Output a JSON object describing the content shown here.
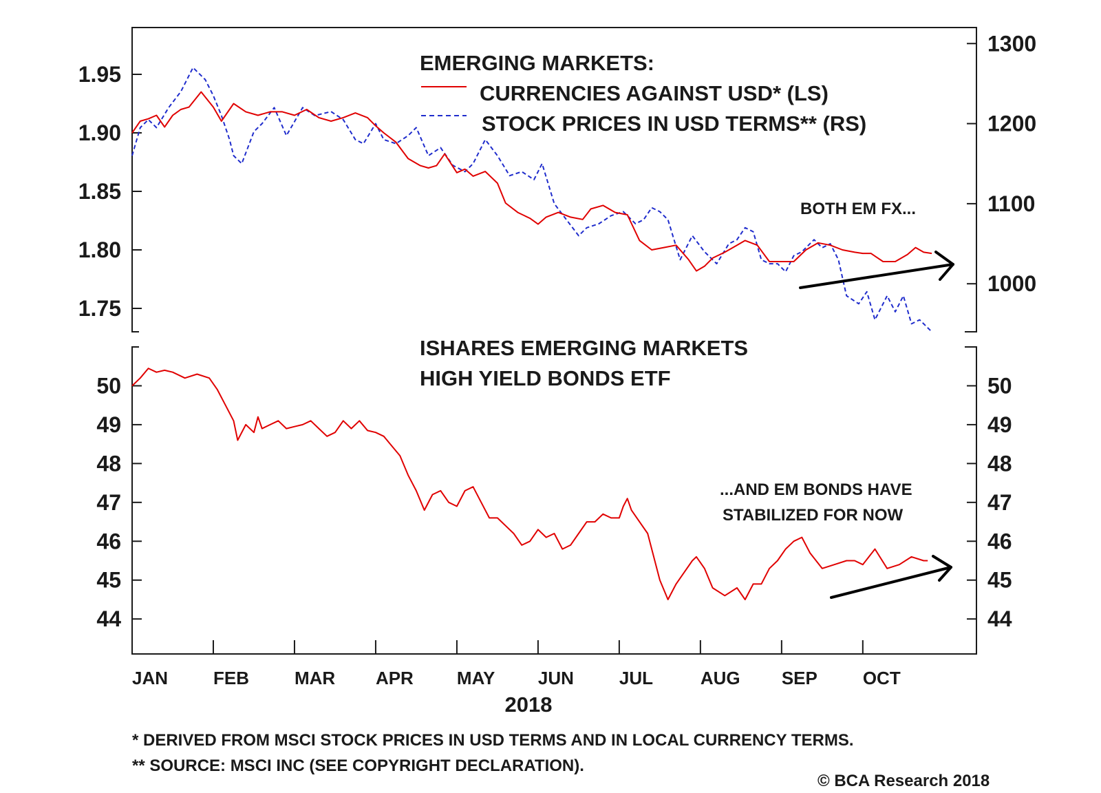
{
  "chart_data": [
    {
      "type": "line",
      "title": "EMERGING MARKETS:",
      "series": [
        {
          "name": "CURRENCIES AGAINST USD* (LS)",
          "axis": "left",
          "color": "#e00000",
          "style": "solid",
          "x": [
            0,
            0.1,
            0.2,
            0.3,
            0.4,
            0.5,
            0.6,
            0.7,
            0.85,
            1.0,
            1.1,
            1.25,
            1.4,
            1.55,
            1.7,
            1.85,
            2.0,
            2.15,
            2.3,
            2.45,
            2.6,
            2.75,
            2.9,
            3.0,
            3.1,
            3.25,
            3.4,
            3.55,
            3.65,
            3.75,
            3.85,
            4.0,
            4.1,
            4.2,
            4.35,
            4.5,
            4.6,
            4.75,
            4.9,
            5.0,
            5.1,
            5.25,
            5.4,
            5.55,
            5.65,
            5.8,
            5.95,
            6.1,
            6.25,
            6.4,
            6.55,
            6.7,
            6.85,
            6.95,
            7.05,
            7.15,
            7.3,
            7.45,
            7.55,
            7.7,
            7.85,
            8.0,
            8.15,
            8.3,
            8.45,
            8.6,
            8.75,
            8.9,
            9.0,
            9.1,
            9.25,
            9.4,
            9.55,
            9.65,
            9.75,
            9.85
          ],
          "y": [
            1.9,
            1.91,
            1.912,
            1.915,
            1.905,
            1.915,
            1.92,
            1.922,
            1.935,
            1.922,
            1.91,
            1.925,
            1.918,
            1.915,
            1.918,
            1.918,
            1.915,
            1.92,
            1.913,
            1.91,
            1.913,
            1.917,
            1.913,
            1.906,
            1.9,
            1.892,
            1.878,
            1.872,
            1.87,
            1.872,
            1.882,
            1.866,
            1.869,
            1.863,
            1.867,
            1.857,
            1.84,
            1.832,
            1.827,
            1.822,
            1.828,
            1.832,
            1.828,
            1.826,
            1.835,
            1.838,
            1.832,
            1.83,
            1.808,
            1.8,
            1.802,
            1.804,
            1.792,
            1.782,
            1.786,
            1.793,
            1.798,
            1.804,
            1.808,
            1.804,
            1.79,
            1.79,
            1.79,
            1.8,
            1.806,
            1.804,
            1.8,
            1.798,
            1.797,
            1.797,
            1.79,
            1.79,
            1.796,
            1.802,
            1.798,
            1.797
          ]
        },
        {
          "name": "STOCK PRICES IN USD TERMS** (RS)",
          "axis": "right",
          "color": "#1f2ccc",
          "style": "dashed",
          "x": [
            0,
            0.1,
            0.2,
            0.3,
            0.45,
            0.6,
            0.75,
            0.9,
            1.0,
            1.1,
            1.2,
            1.25,
            1.35,
            1.5,
            1.6,
            1.75,
            1.9,
            2.1,
            2.25,
            2.45,
            2.6,
            2.75,
            2.85,
            3.0,
            3.1,
            3.25,
            3.4,
            3.5,
            3.65,
            3.8,
            3.95,
            4.1,
            4.2,
            4.35,
            4.5,
            4.65,
            4.8,
            4.95,
            5.05,
            5.2,
            5.35,
            5.5,
            5.6,
            5.75,
            5.9,
            6.05,
            6.2,
            6.3,
            6.4,
            6.5,
            6.6,
            6.75,
            6.9,
            7.05,
            7.2,
            7.35,
            7.45,
            7.55,
            7.65,
            7.75,
            7.85,
            7.95,
            8.05,
            8.15,
            8.25,
            8.4,
            8.5,
            8.6,
            8.7,
            8.8,
            8.95,
            9.05,
            9.15,
            9.3,
            9.4,
            9.5,
            9.6,
            9.7,
            9.85
          ],
          "y": [
            1160,
            1195,
            1205,
            1195,
            1220,
            1240,
            1270,
            1255,
            1235,
            1210,
            1180,
            1160,
            1150,
            1190,
            1200,
            1220,
            1185,
            1220,
            1210,
            1215,
            1205,
            1180,
            1175,
            1200,
            1180,
            1175,
            1185,
            1195,
            1160,
            1170,
            1148,
            1140,
            1150,
            1180,
            1160,
            1135,
            1140,
            1130,
            1150,
            1100,
            1080,
            1060,
            1070,
            1075,
            1085,
            1090,
            1075,
            1080,
            1095,
            1090,
            1080,
            1030,
            1060,
            1040,
            1025,
            1050,
            1055,
            1070,
            1065,
            1030,
            1025,
            1025,
            1015,
            1035,
            1040,
            1055,
            1045,
            1050,
            1030,
            985,
            975,
            990,
            955,
            985,
            965,
            985,
            950,
            955,
            940
          ]
        }
      ],
      "ylim_left": [
        1.73,
        1.99
      ],
      "ylim_right": [
        940,
        1320
      ],
      "yticks_left": [
        "1.75",
        "1.80",
        "1.85",
        "1.90",
        "1.95"
      ],
      "yticks_right": [
        "1000",
        "1100",
        "1200",
        "1300"
      ],
      "annotation": "BOTH EM FX...",
      "grid": false,
      "legend_position": "top-center"
    },
    {
      "type": "line",
      "title": "ISHARES EMERGING MARKETS HIGH YIELD BONDS ETF",
      "series": [
        {
          "color": "#e00000",
          "style": "solid",
          "x": [
            0,
            0.1,
            0.2,
            0.3,
            0.4,
            0.5,
            0.65,
            0.8,
            0.95,
            1.05,
            1.15,
            1.25,
            1.3,
            1.4,
            1.5,
            1.55,
            1.6,
            1.7,
            1.8,
            1.9,
            2.0,
            2.1,
            2.2,
            2.3,
            2.4,
            2.5,
            2.6,
            2.7,
            2.8,
            2.9,
            3.0,
            3.1,
            3.2,
            3.3,
            3.4,
            3.5,
            3.6,
            3.7,
            3.8,
            3.9,
            4.0,
            4.1,
            4.2,
            4.3,
            4.4,
            4.5,
            4.6,
            4.7,
            4.8,
            4.9,
            5.0,
            5.1,
            5.2,
            5.3,
            5.4,
            5.5,
            5.6,
            5.7,
            5.8,
            5.9,
            6.0,
            6.05,
            6.1,
            6.15,
            6.25,
            6.35,
            6.5,
            6.6,
            6.7,
            6.8,
            6.9,
            6.95,
            7.05,
            7.15,
            7.3,
            7.45,
            7.55,
            7.65,
            7.75,
            7.85,
            7.95,
            8.05,
            8.15,
            8.25,
            8.35,
            8.5,
            8.65,
            8.8,
            8.9,
            9.0,
            9.15,
            9.3,
            9.45,
            9.6,
            9.75,
            9.8
          ],
          "y": [
            50.0,
            50.2,
            50.45,
            50.35,
            50.4,
            50.35,
            50.2,
            50.3,
            50.2,
            49.9,
            49.5,
            49.1,
            48.6,
            49.0,
            48.8,
            49.2,
            48.9,
            49.0,
            49.1,
            48.9,
            48.95,
            49.0,
            49.1,
            48.9,
            48.7,
            48.8,
            49.1,
            48.9,
            49.1,
            48.85,
            48.8,
            48.7,
            48.45,
            48.2,
            47.7,
            47.3,
            46.8,
            47.2,
            47.3,
            47.0,
            46.9,
            47.3,
            47.4,
            47.0,
            46.6,
            46.6,
            46.4,
            46.2,
            45.9,
            46.0,
            46.3,
            46.1,
            46.2,
            45.8,
            45.9,
            46.2,
            46.5,
            46.5,
            46.7,
            46.6,
            46.6,
            46.9,
            47.1,
            46.8,
            46.5,
            46.2,
            45.0,
            44.5,
            44.9,
            45.2,
            45.5,
            45.6,
            45.3,
            44.8,
            44.6,
            44.8,
            44.5,
            44.9,
            44.9,
            45.3,
            45.5,
            45.8,
            46.0,
            46.1,
            45.7,
            45.3,
            45.4,
            45.5,
            45.5,
            45.4,
            45.8,
            45.3,
            45.4,
            45.6,
            45.5,
            45.5
          ]
        }
      ],
      "ylim": [
        43.1,
        51.0
      ],
      "yticks_left": [
        "44",
        "45",
        "46",
        "47",
        "48",
        "49",
        "50"
      ],
      "yticks_right": [
        "44",
        "45",
        "46",
        "47",
        "48",
        "49",
        "50"
      ],
      "annotation_lines": [
        "...AND EM BONDS HAVE",
        "STABILIZED FOR NOW"
      ],
      "grid": false
    }
  ],
  "xaxis": {
    "ticks": [
      "JAN",
      "FEB",
      "MAR",
      "APR",
      "MAY",
      "JUN",
      "JUL",
      "AUG",
      "SEP",
      "OCT"
    ],
    "xlim": [
      0,
      10.4
    ],
    "year_label": "2018"
  },
  "legend_title": "EMERGING MARKETS:",
  "footnotes": [
    "*   DERIVED FROM MSCI STOCK PRICES IN USD TERMS AND IN LOCAL CURRENCY TERMS.",
    "** SOURCE: MSCI INC (SEE COPYRIGHT DECLARATION)."
  ],
  "copyright": "© BCA Research 2018"
}
